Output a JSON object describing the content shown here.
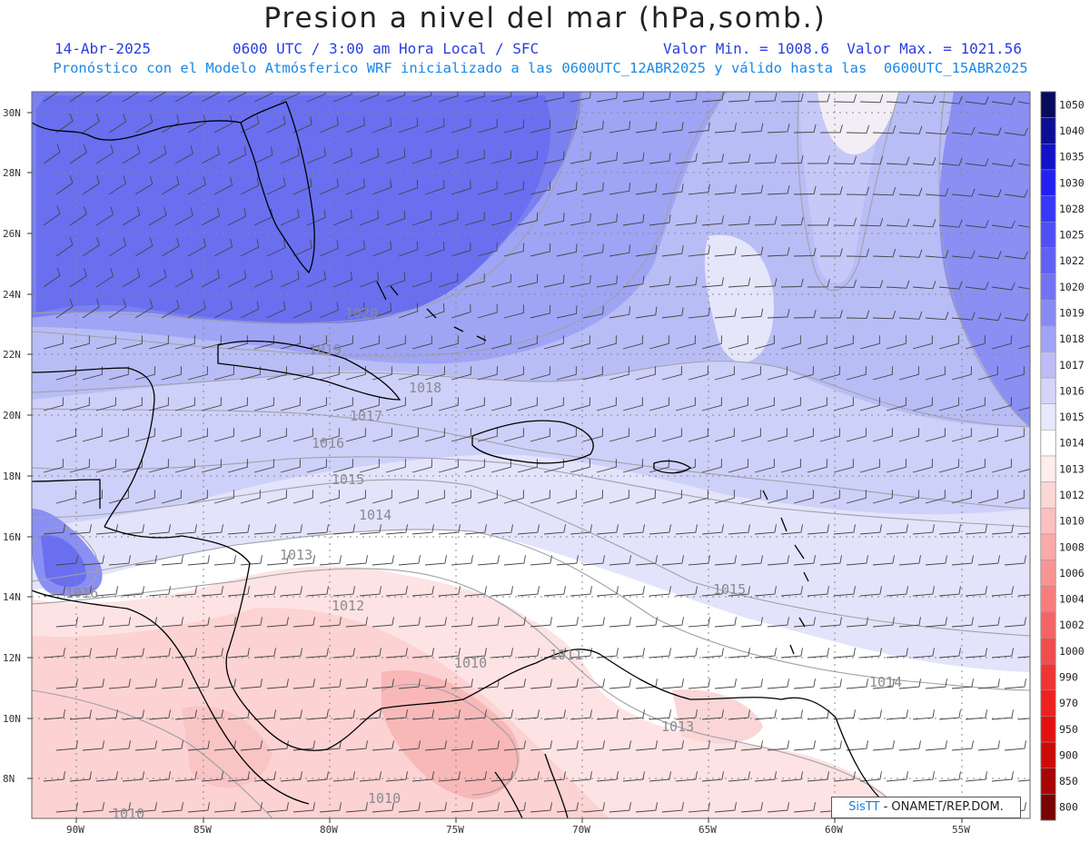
{
  "header": {
    "title": "Presion a nivel del mar (hPa,somb.)",
    "date": "14-Abr-2025",
    "time": "0600 UTC / 3:00 am Hora Local / SFC",
    "min_max": "Valor Min. = 1008.6  Valor Max. = 1021.56",
    "description": "Pronóstico con el Modelo Atmósferico WRF inicializado a las 0600UTC_12ABR2025 y válido hasta las  0600UTC_15ABR2025"
  },
  "axes": {
    "lat_labels": [
      "30N",
      "28N",
      "26N",
      "24N",
      "22N",
      "20N",
      "18N",
      "16N",
      "14N",
      "12N",
      "10N",
      "8N"
    ],
    "lon_labels": [
      "90W",
      "85W",
      "80W",
      "75W",
      "70W",
      "65W",
      "60W",
      "55W"
    ]
  },
  "colorbar": {
    "levels": [
      "1050",
      "1040",
      "1035",
      "1030",
      "1028",
      "1025",
      "1022",
      "1020",
      "1019",
      "1018",
      "1017",
      "1016",
      "1015",
      "1014",
      "1013",
      "1012",
      "1010",
      "1008",
      "1006",
      "1004",
      "1002",
      "1000",
      "990",
      "970",
      "950",
      "900",
      "850",
      "800"
    ],
    "colors": [
      "#0a0a5a",
      "#0e0e95",
      "#1212c8",
      "#2020f0",
      "#3838f8",
      "#4f4ff8",
      "#6060f5",
      "#7272f3",
      "#8a8af4",
      "#a2a2f6",
      "#bcbcf8",
      "#d4d4fa",
      "#e8e8fc",
      "#ffffff",
      "#ffecec",
      "#fdd6d6",
      "#fcc0c0",
      "#fbaaaa",
      "#f99494",
      "#f77c7c",
      "#f56464",
      "#f24c4c",
      "#f03434",
      "#ee2020",
      "#e41010",
      "#cc0a0a",
      "#a80606",
      "#7a0404"
    ]
  },
  "contour_labels": [
    "1020",
    "1019",
    "1018",
    "1017",
    "1016",
    "1015",
    "1014",
    "1013",
    "1012",
    "1011",
    "1010",
    "1016",
    "1013",
    "1010",
    "1015",
    "1014",
    "1010"
  ],
  "credit": {
    "logo": "SisTT",
    "text": "- ONAMET/REP.DOM."
  }
}
